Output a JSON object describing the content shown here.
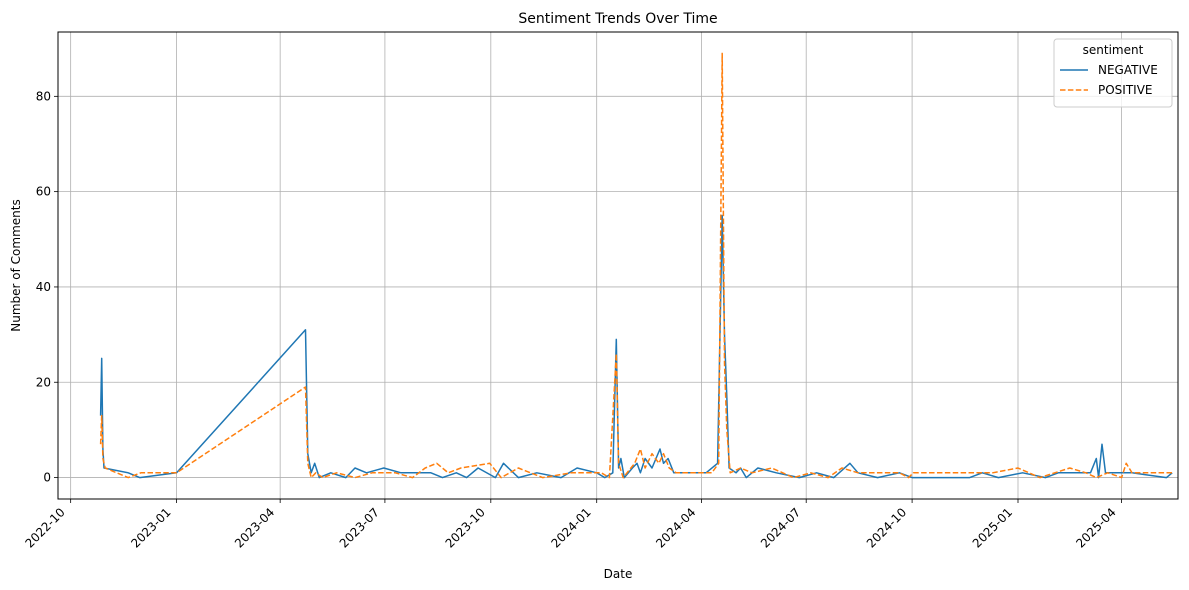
{
  "chart_data": {
    "type": "line",
    "title": "Sentiment Trends Over Time",
    "xlabel": "Date",
    "ylabel": "Number of Comments",
    "x_ticks": [
      "2022-10",
      "2023-01",
      "2023-04",
      "2023-07",
      "2023-10",
      "2024-01",
      "2024-04",
      "2024-07",
      "2024-10",
      "2025-01",
      "2025-04"
    ],
    "y_ticks": [
      0,
      20,
      40,
      60,
      80
    ],
    "xlim": [
      "2022-09-20",
      "2025-05-20"
    ],
    "ylim": [
      -4.5,
      93.5
    ],
    "grid": true,
    "legend": {
      "title": "sentiment",
      "position": "top-right"
    },
    "series": [
      {
        "name": "NEGATIVE",
        "color": "#1f77b4",
        "style": "solid",
        "points": [
          [
            "2022-10-27",
            13
          ],
          [
            "2022-10-28",
            25
          ],
          [
            "2022-10-29",
            6
          ],
          [
            "2022-10-30",
            2
          ],
          [
            "2022-11-20",
            1
          ],
          [
            "2022-11-30",
            0
          ],
          [
            "2023-01-01",
            1
          ],
          [
            "2023-04-23",
            31
          ],
          [
            "2023-04-25",
            5
          ],
          [
            "2023-04-28",
            1
          ],
          [
            "2023-05-01",
            3
          ],
          [
            "2023-05-05",
            0
          ],
          [
            "2023-05-15",
            1
          ],
          [
            "2023-05-28",
            0
          ],
          [
            "2023-06-05",
            2
          ],
          [
            "2023-06-15",
            1
          ],
          [
            "2023-06-30",
            2
          ],
          [
            "2023-07-15",
            1
          ],
          [
            "2023-08-10",
            1
          ],
          [
            "2023-08-20",
            0
          ],
          [
            "2023-09-01",
            1
          ],
          [
            "2023-09-10",
            0
          ],
          [
            "2023-09-20",
            2
          ],
          [
            "2023-10-05",
            0
          ],
          [
            "2023-10-12",
            3
          ],
          [
            "2023-10-25",
            0
          ],
          [
            "2023-11-10",
            1
          ],
          [
            "2023-12-01",
            0
          ],
          [
            "2023-12-15",
            2
          ],
          [
            "2024-01-01",
            1
          ],
          [
            "2024-01-08",
            0
          ],
          [
            "2024-01-15",
            1
          ],
          [
            "2024-01-18",
            29
          ],
          [
            "2024-01-20",
            2
          ],
          [
            "2024-01-22",
            4
          ],
          [
            "2024-01-25",
            0
          ],
          [
            "2024-02-01",
            2
          ],
          [
            "2024-02-05",
            3
          ],
          [
            "2024-02-08",
            1
          ],
          [
            "2024-02-12",
            4
          ],
          [
            "2024-02-18",
            2
          ],
          [
            "2024-02-25",
            6
          ],
          [
            "2024-02-28",
            3
          ],
          [
            "2024-03-03",
            4
          ],
          [
            "2024-03-08",
            1
          ],
          [
            "2024-04-05",
            1
          ],
          [
            "2024-04-15",
            3
          ],
          [
            "2024-04-19",
            55
          ],
          [
            "2024-04-21",
            30
          ],
          [
            "2024-04-23",
            17
          ],
          [
            "2024-04-25",
            2
          ],
          [
            "2024-05-01",
            1
          ],
          [
            "2024-05-05",
            2
          ],
          [
            "2024-05-10",
            0
          ],
          [
            "2024-05-20",
            2
          ],
          [
            "2024-06-05",
            1
          ],
          [
            "2024-06-25",
            0
          ],
          [
            "2024-07-10",
            1
          ],
          [
            "2024-07-25",
            0
          ],
          [
            "2024-08-08",
            3
          ],
          [
            "2024-08-15",
            1
          ],
          [
            "2024-09-01",
            0
          ],
          [
            "2024-09-20",
            1
          ],
          [
            "2024-10-01",
            0
          ],
          [
            "2024-11-20",
            0
          ],
          [
            "2024-12-01",
            1
          ],
          [
            "2024-12-15",
            0
          ],
          [
            "2025-01-05",
            1
          ],
          [
            "2025-01-25",
            0
          ],
          [
            "2025-02-05",
            1
          ],
          [
            "2025-03-05",
            1
          ],
          [
            "2025-03-10",
            4
          ],
          [
            "2025-03-12",
            0
          ],
          [
            "2025-03-15",
            7
          ],
          [
            "2025-03-18",
            1
          ],
          [
            "2025-04-10",
            1
          ],
          [
            "2025-05-10",
            0
          ],
          [
            "2025-05-15",
            1
          ]
        ]
      },
      {
        "name": "POSITIVE",
        "color": "#ff7f0e",
        "style": "dashed",
        "points": [
          [
            "2022-10-27",
            7
          ],
          [
            "2022-10-28",
            13
          ],
          [
            "2022-10-29",
            4
          ],
          [
            "2022-10-31",
            2
          ],
          [
            "2022-11-20",
            0
          ],
          [
            "2022-12-01",
            1
          ],
          [
            "2023-01-01",
            1
          ],
          [
            "2023-04-23",
            19
          ],
          [
            "2023-04-25",
            3
          ],
          [
            "2023-04-28",
            0
          ],
          [
            "2023-05-02",
            1
          ],
          [
            "2023-05-08",
            0
          ],
          [
            "2023-05-20",
            1
          ],
          [
            "2023-06-05",
            0
          ],
          [
            "2023-06-20",
            1
          ],
          [
            "2023-07-10",
            1
          ],
          [
            "2023-07-25",
            0
          ],
          [
            "2023-08-05",
            2
          ],
          [
            "2023-08-15",
            3
          ],
          [
            "2023-08-25",
            1
          ],
          [
            "2023-09-05",
            2
          ],
          [
            "2023-09-30",
            3
          ],
          [
            "2023-10-10",
            0
          ],
          [
            "2023-10-25",
            2
          ],
          [
            "2023-11-15",
            0
          ],
          [
            "2023-12-10",
            1
          ],
          [
            "2024-01-05",
            1
          ],
          [
            "2024-01-12",
            0
          ],
          [
            "2024-01-18",
            26
          ],
          [
            "2024-01-20",
            3
          ],
          [
            "2024-01-24",
            0
          ],
          [
            "2024-02-03",
            3
          ],
          [
            "2024-02-08",
            6
          ],
          [
            "2024-02-12",
            2
          ],
          [
            "2024-02-18",
            5
          ],
          [
            "2024-02-24",
            3
          ],
          [
            "2024-02-28",
            5
          ],
          [
            "2024-03-04",
            2
          ],
          [
            "2024-03-10",
            1
          ],
          [
            "2024-04-10",
            1
          ],
          [
            "2024-04-16",
            3
          ],
          [
            "2024-04-19",
            89
          ],
          [
            "2024-04-21",
            24
          ],
          [
            "2024-04-23",
            10
          ],
          [
            "2024-04-26",
            1
          ],
          [
            "2024-05-05",
            2
          ],
          [
            "2024-05-15",
            1
          ],
          [
            "2024-06-01",
            2
          ],
          [
            "2024-06-20",
            0
          ],
          [
            "2024-07-05",
            1
          ],
          [
            "2024-07-20",
            0
          ],
          [
            "2024-08-01",
            2
          ],
          [
            "2024-08-15",
            1
          ],
          [
            "2024-09-20",
            1
          ],
          [
            "2024-09-28",
            0
          ],
          [
            "2024-10-02",
            1
          ],
          [
            "2024-12-10",
            1
          ],
          [
            "2025-01-01",
            2
          ],
          [
            "2025-01-20",
            0
          ],
          [
            "2025-02-15",
            2
          ],
          [
            "2025-03-01",
            1
          ],
          [
            "2025-03-10",
            0
          ],
          [
            "2025-03-20",
            1
          ],
          [
            "2025-04-01",
            0
          ],
          [
            "2025-04-05",
            3
          ],
          [
            "2025-04-10",
            1
          ],
          [
            "2025-05-15",
            1
          ]
        ]
      }
    ]
  }
}
